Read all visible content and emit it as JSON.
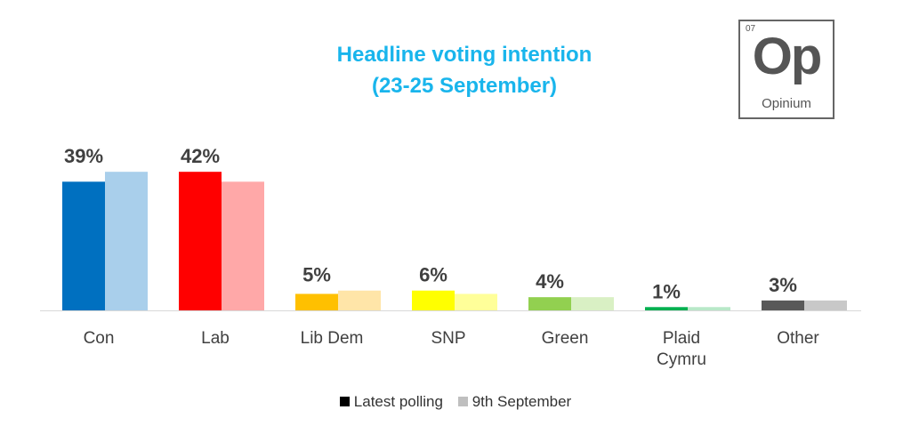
{
  "header": {
    "title_line1": "Headline voting intention",
    "title_line2": "(23-25 September)"
  },
  "logo": {
    "number": "07",
    "symbol": "Op",
    "name": "Opinium",
    "color": "#555555"
  },
  "legend": {
    "latest_label": "Latest polling",
    "previous_label": "9th September",
    "latest_swatch": "#000000",
    "previous_swatch": "#bfbfbf"
  },
  "chart_data": {
    "type": "bar",
    "categories": [
      "Con",
      "Lab",
      "Lib Dem",
      "SNP",
      "Green",
      "Plaid Cymru",
      "Other"
    ],
    "category_lines": [
      [
        "Con"
      ],
      [
        "Lab"
      ],
      [
        "Lib Dem"
      ],
      [
        "SNP"
      ],
      [
        "Green"
      ],
      [
        "Plaid",
        "Cymru"
      ],
      [
        "Other"
      ]
    ],
    "series": [
      {
        "name": "Latest polling",
        "values": [
          39,
          42,
          5,
          6,
          4,
          1,
          3
        ],
        "colors": [
          "#0070c0",
          "#ff0000",
          "#ffc000",
          "#ffff00",
          "#92d050",
          "#00b050",
          "#595959"
        ]
      },
      {
        "name": "9th September",
        "values": [
          42,
          39,
          6,
          5,
          4,
          1,
          3
        ],
        "colors": [
          "#a9cfeb",
          "#ffa8a8",
          "#ffe5a8",
          "#ffff99",
          "#d9f0c4",
          "#b8e8c8",
          "#c8c8c8"
        ]
      }
    ],
    "data_labels": [
      "39%",
      "42%",
      "5%",
      "6%",
      "4%",
      "1%",
      "3%"
    ],
    "ylim": [
      0,
      50
    ],
    "grid": false,
    "legend_position": "bottom"
  }
}
